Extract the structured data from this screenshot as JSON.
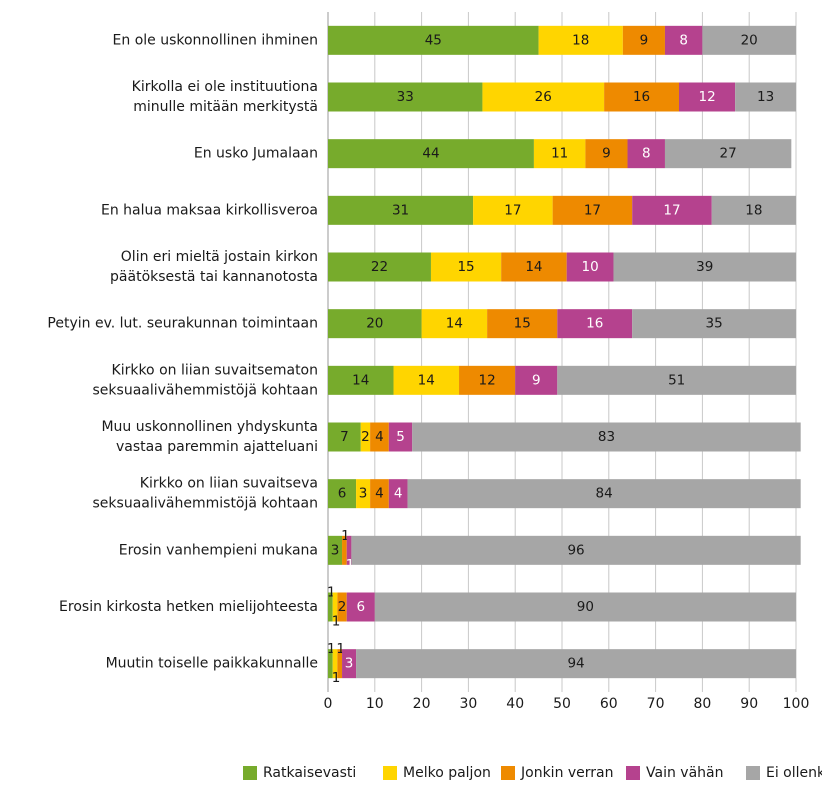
{
  "chart_data": {
    "type": "stacked-barh",
    "categories": [
      [
        "En ole uskonnollinen ihminen"
      ],
      [
        "Kirkolla ei ole instituutiona",
        "minulle mitään merkitystä"
      ],
      [
        "En usko Jumalaan"
      ],
      [
        "En halua maksaa kirkollisveroa"
      ],
      [
        "Olin eri mieltä jostain kirkon",
        "päätöksestä tai kannanotosta"
      ],
      [
        "Petyin ev. lut. seurakunnan toimintaan"
      ],
      [
        "Kirkko on liian suvaitsematon",
        "seksuaalivähemmistöjä kohtaan"
      ],
      [
        "Muu uskonnollinen yhdyskunta",
        "vastaa paremmin ajatteluani"
      ],
      [
        "Kirkko on liian suvaitseva",
        "seksuaalivähemmistöjä kohtaan"
      ],
      [
        "Erosin vanhempieni mukana"
      ],
      [
        "Erosin kirkosta hetken mielijohteesta"
      ],
      [
        "Muutin toiselle paikkakunnalle"
      ]
    ],
    "series": [
      {
        "name": "Ratkaisevasti",
        "color": "#77ab2c",
        "label_color": "#1a1a1a",
        "values": [
          45,
          33,
          44,
          31,
          22,
          20,
          14,
          7,
          6,
          3,
          1,
          1
        ]
      },
      {
        "name": "Melko paljon",
        "color": "#ffd500",
        "label_color": "#1a1a1a",
        "values": [
          18,
          26,
          11,
          17,
          15,
          14,
          14,
          2,
          3,
          0,
          1,
          1
        ]
      },
      {
        "name": "Jonkin verran",
        "color": "#ee8a00",
        "label_color": "#1a1a1a",
        "values": [
          9,
          16,
          9,
          17,
          14,
          15,
          12,
          4,
          4,
          1,
          2,
          1
        ]
      },
      {
        "name": "Vain vähän",
        "color": "#b5428e",
        "label_color": "#ffffff",
        "values": [
          8,
          12,
          8,
          17,
          10,
          16,
          9,
          5,
          4,
          1,
          6,
          3
        ]
      },
      {
        "name": "Ei ollenkaan",
        "color": "#a6a6a6",
        "label_color": "#1a1a1a",
        "values": [
          20,
          13,
          27,
          18,
          39,
          35,
          51,
          83,
          84,
          96,
          90,
          94
        ]
      }
    ],
    "xlim": [
      0,
      100
    ],
    "xticks": [
      0,
      10,
      20,
      30,
      40,
      50,
      60,
      70,
      80,
      90,
      100
    ],
    "grid": true
  }
}
